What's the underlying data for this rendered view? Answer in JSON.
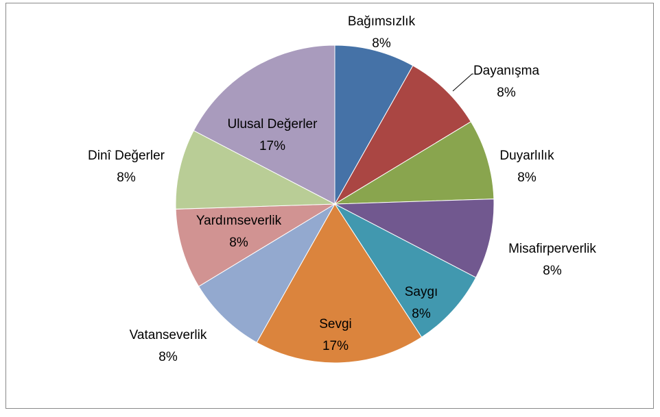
{
  "chart_data": {
    "type": "pie",
    "categories": [
      "Bağımsızlık",
      "Dayanışma",
      "Duyarlılık",
      "Misafirperverlik",
      "Saygı",
      "Sevgi",
      "Vatanseverlik",
      "Yardımseverlik",
      "Dinî Değerler",
      "Ulusal Değerler"
    ],
    "values": [
      8,
      8,
      8,
      8,
      8,
      17,
      8,
      8,
      8,
      17
    ],
    "value_labels": [
      "8%",
      "8%",
      "8%",
      "8%",
      "8%",
      "17%",
      "8%",
      "8%",
      "8%",
      "17%"
    ],
    "colors": [
      "#4572a7",
      "#aa4643",
      "#89a54e",
      "#71588f",
      "#4198af",
      "#db843d",
      "#93a9cf",
      "#d19392",
      "#b9cd96",
      "#a99bbd"
    ]
  }
}
